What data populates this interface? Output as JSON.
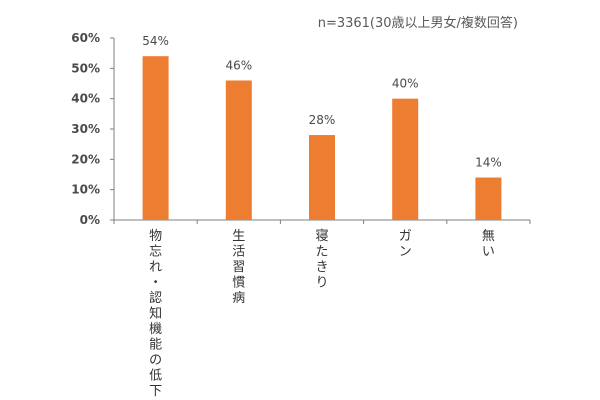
{
  "note": "n=3361(30歳以上男女/複数回答)",
  "chart_data": {
    "type": "bar",
    "categories": [
      "物忘れ・認知機能の低下",
      "生活習慣病",
      "寝たきり",
      "ガン",
      "無い"
    ],
    "values": [
      54,
      46,
      28,
      40,
      14
    ],
    "value_labels": [
      "54%",
      "46%",
      "28%",
      "40%",
      "14%"
    ],
    "ylim": [
      0,
      60
    ],
    "yticks": [
      "0%",
      "10%",
      "20%",
      "30%",
      "40%",
      "50%",
      "60%"
    ],
    "ytick_values": [
      0,
      10,
      20,
      30,
      40,
      50,
      60
    ],
    "grid": false,
    "bar_color": "#ED7D31",
    "axis_color": "#7f7f7f",
    "text_color": "#4a4a4a"
  }
}
